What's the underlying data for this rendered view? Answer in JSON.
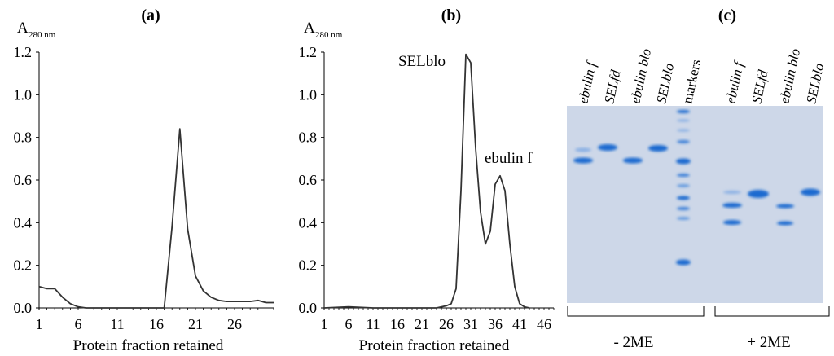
{
  "chart_data": [
    {
      "type": "line",
      "panel_label": "(a)",
      "ylabel_main": "A",
      "ylabel_sub": "280 nm",
      "xlabel": "Protein fraction retained",
      "xlim": [
        1,
        31
      ],
      "ylim": [
        0,
        1.2
      ],
      "xticks": [
        "1",
        "6",
        "11",
        "16",
        "21",
        "26"
      ],
      "xtick_values": [
        1,
        6,
        11,
        16,
        21,
        26
      ],
      "yticks": [
        "0.0",
        "0.2",
        "0.4",
        "0.6",
        "0.8",
        "1.0",
        "1.2"
      ],
      "ytick_values": [
        0,
        0.2,
        0.4,
        0.6,
        0.8,
        1.0,
        1.2
      ],
      "series": [
        {
          "name": "absorbance",
          "x": [
            1,
            2,
            3,
            4,
            5,
            6,
            7,
            8,
            9,
            10,
            11,
            12,
            13,
            14,
            15,
            16,
            17,
            18,
            19,
            20,
            21,
            22,
            23,
            24,
            25,
            26,
            27,
            28,
            29,
            30,
            31
          ],
          "y": [
            0.1,
            0.09,
            0.09,
            0.05,
            0.02,
            0.005,
            0.0,
            0.0,
            0.0,
            0.0,
            0.0,
            0.0,
            0.0,
            0.0,
            0.0,
            0.0,
            0.0,
            0.38,
            0.84,
            0.37,
            0.15,
            0.08,
            0.05,
            0.035,
            0.03,
            0.03,
            0.03,
            0.03,
            0.035,
            0.025,
            0.025
          ]
        }
      ],
      "annotations": []
    },
    {
      "type": "line",
      "panel_label": "(b)",
      "ylabel_main": "A",
      "ylabel_sub": "280 nm",
      "xlabel": "Protein fraction retained",
      "xlim": [
        1,
        48
      ],
      "ylim": [
        0,
        1.2
      ],
      "xticks": [
        "1",
        "6",
        "11",
        "16",
        "21",
        "26",
        "31",
        "36",
        "41",
        "46"
      ],
      "xtick_values": [
        1,
        6,
        11,
        16,
        21,
        26,
        31,
        36,
        41,
        46
      ],
      "yticks": [
        "0.0",
        "0.2",
        "0.4",
        "0.6",
        "0.8",
        "1.0",
        "1.2"
      ],
      "ytick_values": [
        0,
        0.2,
        0.4,
        0.6,
        0.8,
        1.0,
        1.2
      ],
      "series": [
        {
          "name": "absorbance",
          "x": [
            1,
            6,
            11,
            16,
            21,
            24,
            26,
            27,
            28,
            29,
            30,
            31,
            32,
            33,
            34,
            35,
            36,
            37,
            38,
            39,
            40,
            41,
            42,
            43
          ],
          "y": [
            0.0,
            0.005,
            0.0,
            0.0,
            0.0,
            0.0,
            0.01,
            0.02,
            0.09,
            0.55,
            1.19,
            1.15,
            0.75,
            0.45,
            0.3,
            0.36,
            0.58,
            0.62,
            0.55,
            0.3,
            0.1,
            0.02,
            0.005,
            0.0
          ]
        }
      ],
      "annotations": [
        {
          "text": "SELblo",
          "peak_x": 30,
          "peak_y": 1.19
        },
        {
          "text": "ebulin f",
          "peak_x": 37,
          "peak_y": 0.62
        }
      ]
    },
    {
      "type": "image",
      "panel_label": "(c)",
      "lane_labels": [
        "ebulin f",
        "SELfd",
        "ebulin blo",
        "SELblo",
        "markers",
        "ebulin f",
        "SELfd",
        "ebulin blo",
        "SELblo"
      ],
      "groups": [
        "- 2ME",
        "+ 2ME"
      ],
      "colors": {
        "gel": "#cdd7e8",
        "band": "#1a6ad0",
        "band_faint": "#8ab0e4"
      }
    }
  ]
}
